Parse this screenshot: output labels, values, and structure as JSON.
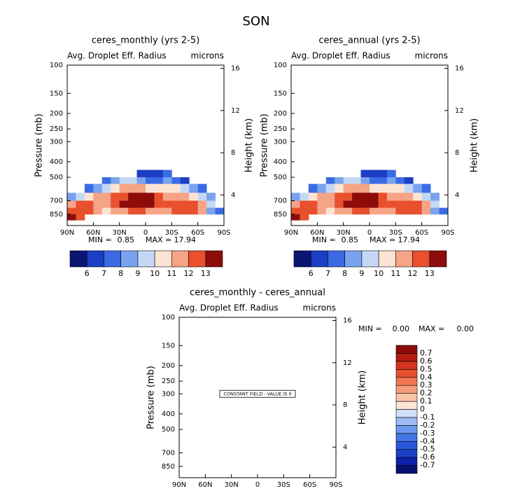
{
  "title": "SON",
  "chart_data": [
    {
      "type": "contour",
      "title": "ceres_monthly (yrs 2-5)",
      "subtitle": "Avg. Droplet Eff. Radius",
      "units": "microns",
      "ylabel": "Pressure (mb)",
      "y2label": "Height (km)",
      "xlim": [
        90,
        -90
      ],
      "xticks": [
        {
          "value": 90,
          "label": "90N"
        },
        {
          "value": 60,
          "label": "60N"
        },
        {
          "value": 30,
          "label": "30N"
        },
        0,
        {
          "value": -30,
          "label": "30S"
        },
        {
          "value": -60,
          "label": "60S"
        },
        {
          "value": -90,
          "label": "90S"
        }
      ],
      "ylim": [
        1000,
        100
      ],
      "ylog": true,
      "yticks": [
        100,
        150,
        200,
        250,
        300,
        400,
        500,
        700,
        850
      ],
      "y2lim": [
        1.1,
        16.3
      ],
      "y2ticks": [
        4,
        8,
        12,
        16
      ],
      "lat_edges": [
        90,
        80,
        70,
        60,
        50,
        40,
        30,
        20,
        10,
        0,
        -10,
        -20,
        -30,
        -40,
        -50,
        -60,
        -70,
        -80,
        -90
      ],
      "p_edges": [
        450,
        500,
        550,
        625,
        700,
        775,
        850,
        925
      ],
      "z": [
        [
          null,
          null,
          null,
          null,
          null,
          null,
          null,
          null,
          6,
          6,
          6.5,
          7,
          null,
          null,
          null,
          null,
          null,
          null
        ],
        [
          null,
          null,
          null,
          null,
          7,
          8,
          9,
          9.5,
          8,
          7,
          7.5,
          8,
          7,
          6.5,
          null,
          null,
          null,
          null
        ],
        [
          null,
          null,
          7,
          8,
          9,
          10,
          11,
          11.5,
          11,
          10.5,
          10.5,
          10.5,
          10,
          9,
          8,
          7,
          null,
          null
        ],
        [
          8,
          9,
          10,
          11,
          11,
          12,
          12.5,
          13.5,
          13.5,
          13,
          12,
          11.5,
          11.5,
          11,
          10.5,
          9.5,
          8,
          null
        ],
        [
          11,
          12,
          12,
          11.5,
          11,
          12,
          13,
          14,
          14,
          13.5,
          12,
          12,
          12.5,
          12.5,
          12,
          11,
          9,
          null
        ],
        [
          12,
          12.5,
          12,
          11,
          10.5,
          11,
          11.5,
          12,
          12,
          11.5,
          11,
          11.5,
          12,
          12.5,
          12.5,
          11.5,
          8,
          7
        ],
        [
          13.5,
          12,
          null,
          null,
          null,
          null,
          null,
          null,
          null,
          null,
          null,
          null,
          null,
          null,
          null,
          null,
          null,
          null
        ]
      ],
      "stats": [
        {
          "label": "MIN =",
          "value": 0.85
        },
        {
          "label": "MAX =",
          "value": 17.94
        }
      ],
      "colorbar": {
        "orientation": "horizontal",
        "levels": [
          6,
          7,
          8,
          9,
          10,
          11,
          12,
          13
        ],
        "colors": [
          "#0a1672",
          "#1a3fc4",
          "#3b6be4",
          "#7aa2ef",
          "#c4d8f6",
          "#fde4d2",
          "#f6a486",
          "#e8502e",
          "#8e0b0b"
        ]
      }
    },
    {
      "type": "contour",
      "title": "ceres_annual (yrs 2-5)",
      "subtitle": "Avg. Droplet Eff. Radius",
      "units": "microns",
      "ylabel": "Pressure (mb)",
      "y2label": "Height (km)",
      "xlim": [
        90,
        -90
      ],
      "xticks": [
        {
          "value": 90,
          "label": "90N"
        },
        {
          "value": 60,
          "label": "60N"
        },
        {
          "value": 30,
          "label": "30N"
        },
        0,
        {
          "value": -30,
          "label": "30S"
        },
        {
          "value": -60,
          "label": "60S"
        },
        {
          "value": -90,
          "label": "90S"
        }
      ],
      "ylim": [
        1000,
        100
      ],
      "ylog": true,
      "yticks": [
        100,
        150,
        200,
        250,
        300,
        400,
        500,
        700,
        850
      ],
      "y2lim": [
        1.1,
        16.3
      ],
      "y2ticks": [
        4,
        8,
        12,
        16
      ],
      "lat_edges": [
        90,
        80,
        70,
        60,
        50,
        40,
        30,
        20,
        10,
        0,
        -10,
        -20,
        -30,
        -40,
        -50,
        -60,
        -70,
        -80,
        -90
      ],
      "p_edges": [
        450,
        500,
        550,
        625,
        700,
        775,
        850,
        925
      ],
      "z": [
        [
          null,
          null,
          null,
          null,
          null,
          null,
          null,
          null,
          6,
          6,
          6.5,
          7,
          null,
          null,
          null,
          null,
          null,
          null
        ],
        [
          null,
          null,
          null,
          null,
          7,
          8,
          9,
          9.5,
          8,
          7,
          7.5,
          8,
          7,
          6.5,
          null,
          null,
          null,
          null
        ],
        [
          null,
          null,
          7,
          8,
          9,
          10,
          11,
          11.5,
          11,
          10.5,
          10.5,
          10.5,
          10,
          9,
          8,
          7,
          null,
          null
        ],
        [
          8,
          9,
          10,
          11,
          11,
          12,
          12.5,
          13.5,
          13.5,
          13,
          12,
          11.5,
          11.5,
          11,
          10.5,
          9.5,
          8,
          null
        ],
        [
          11,
          12,
          12,
          11.5,
          11,
          12,
          13,
          14,
          14,
          13.5,
          12,
          12,
          12.5,
          12.5,
          12,
          11,
          9,
          null
        ],
        [
          12,
          12.5,
          12,
          11,
          10.5,
          11,
          11.5,
          12,
          12,
          11.5,
          11,
          11.5,
          12,
          12.5,
          12.5,
          11.5,
          8,
          7
        ],
        [
          13.5,
          12,
          null,
          null,
          null,
          null,
          null,
          null,
          null,
          null,
          null,
          null,
          null,
          null,
          null,
          null,
          null,
          null
        ]
      ],
      "stats": [
        {
          "label": "MIN =",
          "value": 0.85
        },
        {
          "label": "MAX =",
          "value": 17.94
        }
      ],
      "colorbar": {
        "orientation": "horizontal",
        "levels": [
          6,
          7,
          8,
          9,
          10,
          11,
          12,
          13
        ],
        "colors": [
          "#0a1672",
          "#1a3fc4",
          "#3b6be4",
          "#7aa2ef",
          "#c4d8f6",
          "#fde4d2",
          "#f6a486",
          "#e8502e",
          "#8e0b0b"
        ]
      }
    },
    {
      "type": "contour",
      "title": "ceres_monthly - ceres_annual",
      "subtitle": "Avg. Droplet Eff. Radius",
      "units": "microns",
      "ylabel": "Pressure (mb)",
      "y2label": "Height (km)",
      "xlim": [
        90,
        -90
      ],
      "xticks": [
        {
          "value": 90,
          "label": "90N"
        },
        {
          "value": 60,
          "label": "60N"
        },
        {
          "value": 30,
          "label": "30N"
        },
        0,
        {
          "value": -30,
          "label": "30S"
        },
        {
          "value": -60,
          "label": "60S"
        },
        {
          "value": -90,
          "label": "90S"
        }
      ],
      "ylim": [
        1000,
        100
      ],
      "ylog": true,
      "yticks": [
        100,
        150,
        200,
        250,
        300,
        400,
        500,
        700,
        850
      ],
      "y2lim": [
        1.1,
        16.3
      ],
      "y2ticks": [
        4,
        8,
        12,
        16
      ],
      "annotation": "CONSTANT FIELD - VALUE IS 0",
      "stats": [
        {
          "label": "MIN =",
          "value": 0,
          "value_label": "0.00"
        },
        {
          "label": "MAX =",
          "value": 0,
          "value_label": "0.00"
        }
      ],
      "colorbar": {
        "orientation": "vertical",
        "levels": [
          -0.7,
          -0.6,
          -0.5,
          -0.4,
          -0.3,
          -0.2,
          -0.1,
          0,
          0.1,
          0.2,
          0.3,
          0.4,
          0.5,
          0.6,
          0.7
        ],
        "colors": [
          "#081070",
          "#0d22a8",
          "#1a3fc4",
          "#2c59da",
          "#4575e6",
          "#6d97ee",
          "#9cbaf3",
          "#cfe0f8",
          "#fde6d6",
          "#f9c3a8",
          "#f59d7c",
          "#ef7553",
          "#e8502e",
          "#d4341d",
          "#b51d12",
          "#8e0b0b"
        ]
      }
    }
  ]
}
